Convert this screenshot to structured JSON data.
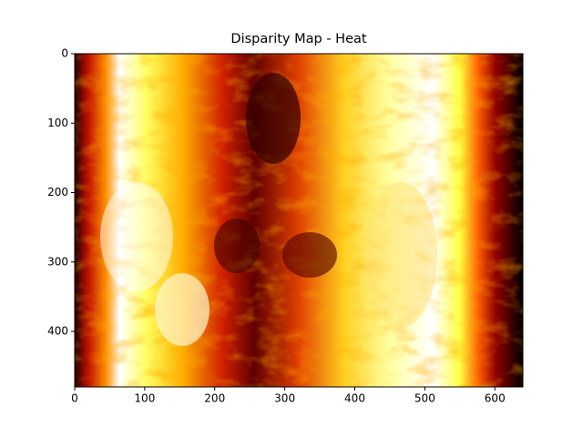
{
  "chart_data": {
    "type": "image",
    "title": "Disparity Map - Heat",
    "colormap": "hot",
    "xlim": [
      0,
      640
    ],
    "ylim": [
      480,
      0
    ],
    "xticks": [
      0,
      100,
      200,
      300,
      400,
      500,
      600
    ],
    "yticks": [
      0,
      100,
      200,
      300,
      400
    ]
  }
}
